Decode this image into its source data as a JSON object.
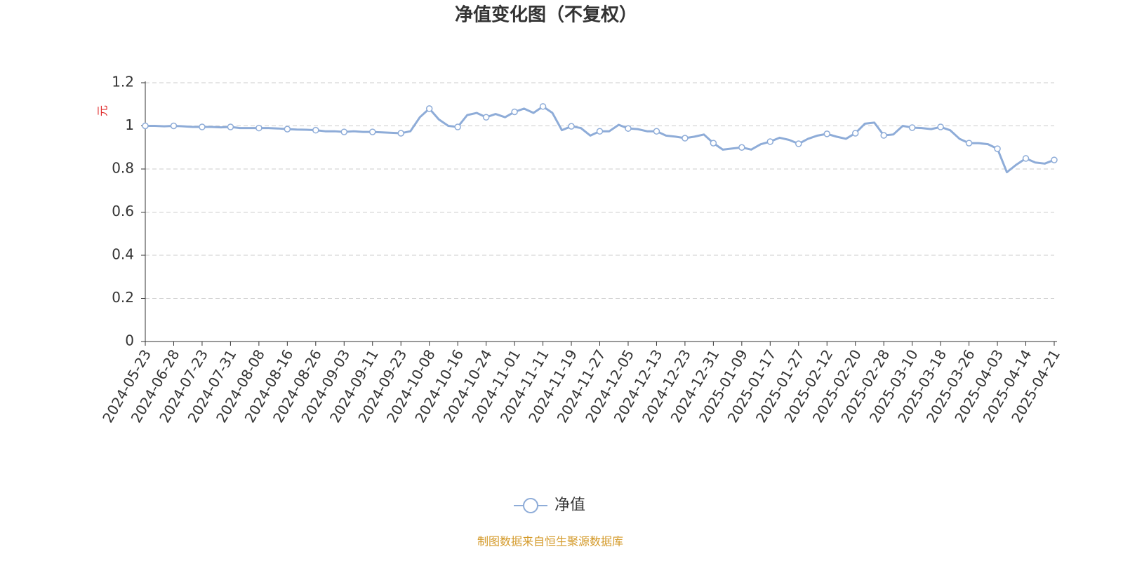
{
  "chart_data": {
    "type": "line",
    "title": "净值变化图（不复权）",
    "y_label": "元",
    "source": "制图数据来自恒生聚源数据库",
    "categories": [
      "2024-05-23",
      null,
      null,
      "2024-06-28",
      null,
      null,
      "2024-07-23",
      null,
      null,
      "2024-07-31",
      null,
      null,
      "2024-08-08",
      null,
      null,
      "2024-08-16",
      null,
      null,
      "2024-08-26",
      null,
      null,
      "2024-09-03",
      null,
      null,
      "2024-09-11",
      null,
      null,
      "2024-09-23",
      null,
      null,
      "2024-10-08",
      null,
      null,
      "2024-10-16",
      null,
      null,
      "2024-10-24",
      null,
      null,
      "2024-11-01",
      null,
      null,
      "2024-11-11",
      null,
      null,
      "2024-11-19",
      null,
      null,
      "2024-11-27",
      null,
      null,
      "2024-12-05",
      null,
      null,
      "2024-12-13",
      null,
      null,
      "2024-12-23",
      null,
      null,
      "2024-12-31",
      null,
      null,
      "2025-01-09",
      null,
      null,
      "2025-01-17",
      null,
      null,
      "2025-01-27",
      null,
      null,
      "2025-02-12",
      null,
      null,
      "2025-02-20",
      null,
      null,
      "2025-02-28",
      null,
      null,
      "2025-03-10",
      null,
      null,
      "2025-03-18",
      null,
      null,
      "2025-03-26",
      null,
      null,
      "2025-04-03",
      null,
      null,
      "2025-04-14",
      null,
      null,
      "2025-04-21"
    ],
    "series": [
      {
        "name": "净值",
        "color": "#8eacd8",
        "values": [
          1.0,
          1.0,
          0.998,
          1.0,
          0.998,
          0.995,
          0.995,
          0.995,
          0.993,
          0.995,
          0.99,
          0.99,
          0.99,
          0.99,
          0.988,
          0.985,
          0.983,
          0.982,
          0.98,
          0.975,
          0.975,
          0.972,
          0.975,
          0.972,
          0.972,
          0.97,
          0.968,
          0.966,
          0.975,
          1.04,
          1.08,
          1.03,
          1.0,
          0.995,
          1.05,
          1.06,
          1.04,
          1.055,
          1.04,
          1.065,
          1.08,
          1.06,
          1.09,
          1.06,
          0.98,
          0.998,
          0.99,
          0.955,
          0.975,
          0.975,
          1.005,
          0.988,
          0.985,
          0.975,
          0.975,
          0.955,
          0.95,
          0.943,
          0.95,
          0.96,
          0.92,
          0.89,
          0.895,
          0.9,
          0.89,
          0.915,
          0.927,
          0.945,
          0.935,
          0.917,
          0.94,
          0.955,
          0.963,
          0.95,
          0.94,
          0.966,
          1.01,
          1.015,
          0.956,
          0.96,
          1.0,
          0.992,
          0.99,
          0.985,
          0.995,
          0.98,
          0.94,
          0.92,
          0.92,
          0.915,
          0.894,
          0.785,
          0.82,
          0.849,
          0.83,
          0.825,
          0.842
        ]
      }
    ],
    "ylim": [
      0,
      1.2
    ],
    "yticks": [
      0,
      0.2,
      0.4,
      0.6,
      0.8,
      1,
      1.2
    ],
    "grid": true
  }
}
